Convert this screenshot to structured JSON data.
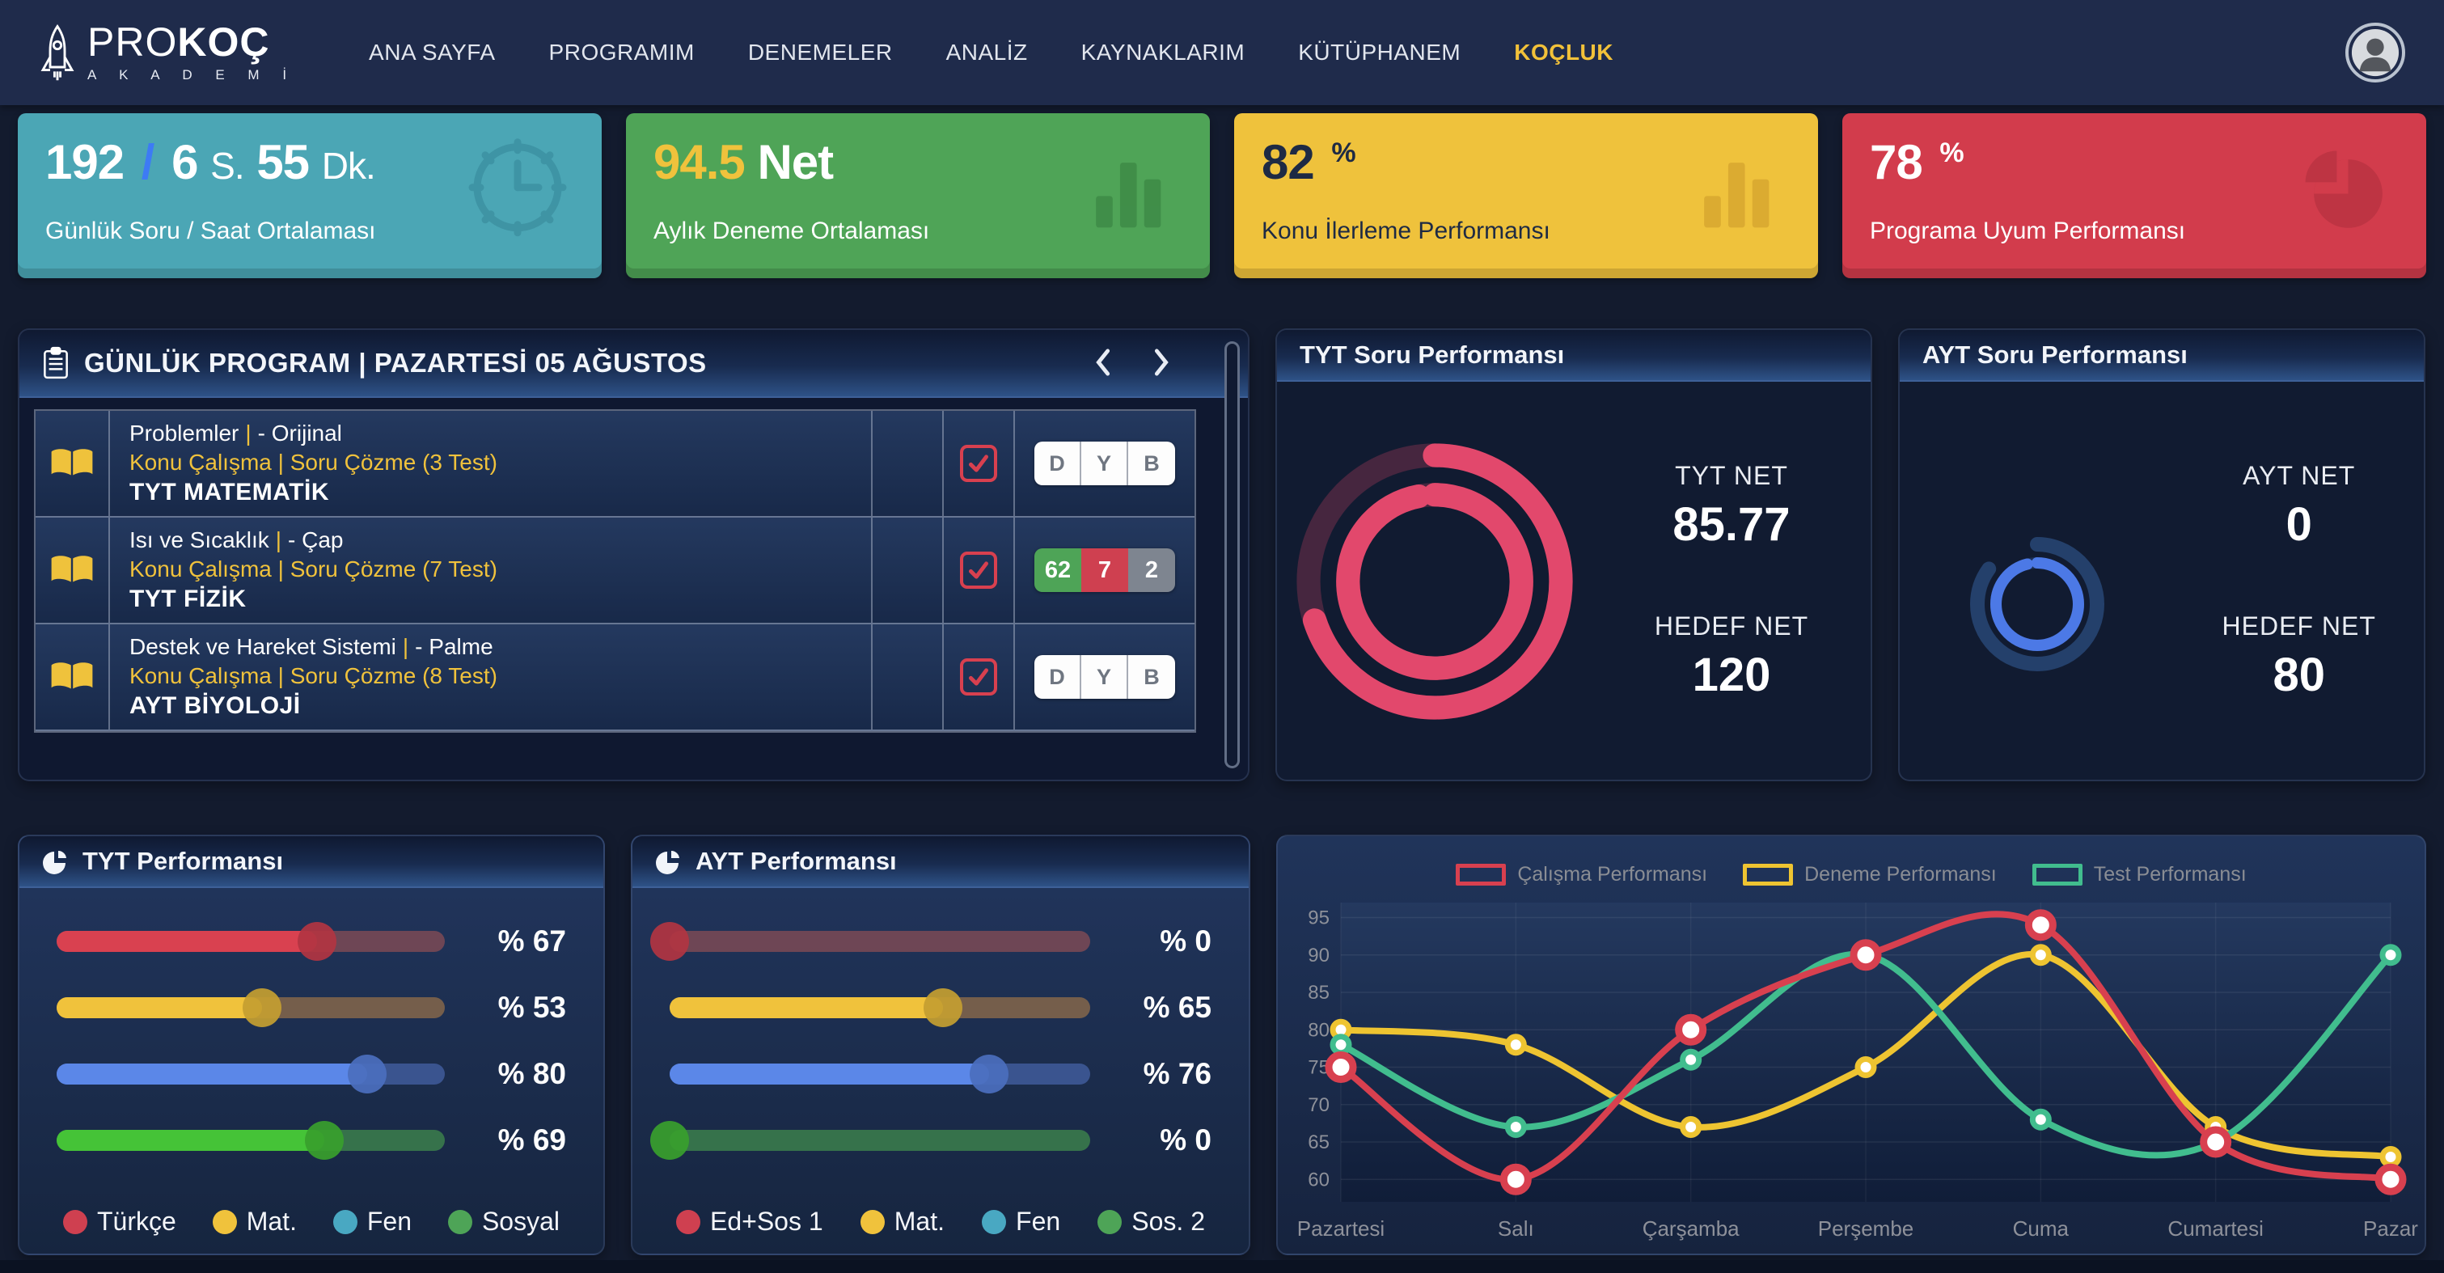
{
  "navbar": {
    "brand_pro": "PRO",
    "brand_koc": "KOÇ",
    "brand_sub": "A K A D E M İ",
    "items": [
      {
        "label": "ANA SAYFA",
        "active": false
      },
      {
        "label": "PROGRAMIM",
        "active": false
      },
      {
        "label": "DENEMELER",
        "active": false
      },
      {
        "label": "ANALİZ",
        "active": false
      },
      {
        "label": "KAYNAKLARIM",
        "active": false
      },
      {
        "label": "KÜTÜPHANEM",
        "active": false
      },
      {
        "label": "KOÇLUK",
        "active": true
      }
    ],
    "active_color": "#F2C139"
  },
  "stats": [
    {
      "num1": "192",
      "sep": "/",
      "num2": "6",
      "unit2": "S.",
      "num3": "55",
      "unit3": "Dk.",
      "label": "Günlük Soru / Saat Ortalaması",
      "icon": "clock-icon",
      "bg": "#4BA6B5"
    },
    {
      "num": "94.5",
      "unit": "Net",
      "label": "Aylık Deneme Ortalaması",
      "icon": "bar-chart-icon",
      "bg": "#4FA457",
      "accent": "#F0C23C"
    },
    {
      "num": "82",
      "unit": "%",
      "label": "Konu İlerleme Performansı",
      "icon": "bar-chart-icon",
      "bg": "#EFC23C",
      "text_color": "#1E2A44"
    },
    {
      "num": "78",
      "unit": "%",
      "label": "Programa Uyum Performansı",
      "icon": "pie-chart-icon",
      "bg": "#D23C4C"
    }
  ],
  "daily_program": {
    "title": "GÜNLÜK PROGRAM | PAZARTESİ 05 AĞUSTOS",
    "sep": "|",
    "rows": [
      {
        "line1_left": "Problemler",
        "line1_right": "- Orijinal",
        "line2": "Konu Çalışma | Soru Çözme (3 Test)",
        "line3": "TYT MATEMATİK",
        "checked": true,
        "action": {
          "type": "dyb",
          "items": [
            {
              "label": "D"
            },
            {
              "label": "Y"
            },
            {
              "label": "B"
            }
          ]
        }
      },
      {
        "line1_left": "Isı ve Sıcaklık",
        "line1_right": "- Çap",
        "line2": "Konu Çalışma | Soru Çözme (7 Test)",
        "line3": "TYT FİZİK",
        "checked": true,
        "action": {
          "type": "scores",
          "items": [
            {
              "label": "62",
              "color": "#4EA457"
            },
            {
              "label": "7",
              "color": "#CF4050"
            },
            {
              "label": "2",
              "color": "#7E8590"
            }
          ]
        }
      },
      {
        "line1_left": "Destek ve Hareket Sistemi",
        "line1_right": "- Palme",
        "line2": "Konu Çalışma | Soru Çözme (8 Test)",
        "line3": "AYT BİYOLOJİ",
        "checked": true,
        "action": {
          "type": "dyb",
          "items": [
            {
              "label": "D"
            },
            {
              "label": "Y"
            },
            {
              "label": "B"
            }
          ]
        }
      }
    ]
  },
  "tyt_soru": {
    "title": "TYT Soru Performansı",
    "net_label": "TYT NET",
    "net_value": "85.77",
    "target_label": "HEDEF NET",
    "target_value": "120",
    "rings": [
      {
        "pct": 70,
        "color": "#E2486C",
        "track": "#46263F"
      },
      {
        "pct": 97,
        "color": "#E2486C",
        "track": "#46263F"
      }
    ]
  },
  "ayt_soru": {
    "title": "AYT Soru Performansı",
    "net_label": "AYT NET",
    "net_value": "0",
    "target_label": "HEDEF NET",
    "target_value": "80",
    "rings": [
      {
        "pct": 85,
        "color": "#24406B",
        "track": ""
      },
      {
        "pct": 96,
        "color": "#4C79E6",
        "track": "#1C3055"
      }
    ]
  },
  "tyt_perf": {
    "title": "TYT Performansı",
    "sliders": [
      {
        "label": "% 67",
        "pct": 67,
        "color": "#D94150",
        "dim": "#7C4A55"
      },
      {
        "label": "% 53",
        "pct": 53,
        "color": "#F0C23C",
        "dim": "#85664A"
      },
      {
        "label": "% 80",
        "pct": 80,
        "color": "#5B87E8",
        "dim": "#3F5C9B"
      },
      {
        "label": "% 69",
        "pct": 69,
        "color": "#45C337",
        "dim": "#3C7F4C"
      }
    ],
    "legend": [
      {
        "label": "Türkçe",
        "color": "#CF4050"
      },
      {
        "label": "Mat.",
        "color": "#F0C23C"
      },
      {
        "label": "Fen",
        "color": "#49A8C2"
      },
      {
        "label": "Sosyal",
        "color": "#4EA457"
      }
    ]
  },
  "ayt_perf": {
    "title": "AYT Performansı",
    "sliders": [
      {
        "label": "% 0",
        "pct": 0,
        "color": "#D94150",
        "dim": "#7C4A55"
      },
      {
        "label": "% 65",
        "pct": 65,
        "color": "#F0C23C",
        "dim": "#85664A"
      },
      {
        "label": "% 76",
        "pct": 76,
        "color": "#5B87E8",
        "dim": "#3F5C9B"
      },
      {
        "label": "% 0",
        "pct": 0,
        "color": "#45C337",
        "dim": "#3C7F4C"
      }
    ],
    "legend": [
      {
        "label": "Ed+Sos 1",
        "color": "#CF4050"
      },
      {
        "label": "Mat.",
        "color": "#F0C23C"
      },
      {
        "label": "Fen",
        "color": "#49A8C2"
      },
      {
        "label": "Sos. 2",
        "color": "#4EA457"
      }
    ]
  },
  "chart_data": {
    "type": "line",
    "categories": [
      "Pazartesi",
      "Salı",
      "Çarşamba",
      "Perşembe",
      "Cuma",
      "Cumartesi",
      "Pazar"
    ],
    "series": [
      {
        "name": "Çalışma Performansı",
        "color": "#D8404F",
        "values": [
          75,
          60,
          80,
          90,
          94,
          65,
          60
        ]
      },
      {
        "name": "Deneme Performansı",
        "color": "#EEC431",
        "values": [
          80,
          78,
          67,
          75,
          90,
          67,
          63
        ]
      },
      {
        "name": "Test Performansı",
        "color": "#41BD8E",
        "values": [
          78,
          67,
          76,
          90,
          68,
          65,
          90
        ]
      }
    ],
    "yticks": [
      60,
      65,
      70,
      75,
      80,
      85,
      90,
      95
    ],
    "ylim": [
      57,
      97
    ],
    "grid": true,
    "legend_position": "top",
    "axis_label_color": "#8E919A"
  }
}
